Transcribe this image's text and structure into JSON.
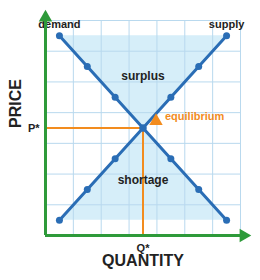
{
  "chart_data": {
    "type": "line",
    "x_label": "QUANTITY",
    "y_label": "PRICE",
    "x": [
      0.5,
      1.5,
      2.5,
      3.5,
      4.5,
      5.5,
      6.5
    ],
    "series": [
      {
        "name": "demand",
        "color": "#2a6db5",
        "marker": "circle",
        "values": [
          6.5,
          5.5,
          4.5,
          3.5,
          2.5,
          1.5,
          0.5
        ]
      },
      {
        "name": "supply",
        "color": "#2a6db5",
        "marker": "circle",
        "values": [
          0.5,
          1.5,
          2.5,
          3.5,
          4.5,
          5.5,
          6.5
        ]
      }
    ],
    "xlim": [
      0,
      7
    ],
    "ylim": [
      0,
      7
    ],
    "xticks": [
      0,
      1,
      2,
      3,
      4,
      5,
      6,
      7
    ],
    "yticks": [
      0,
      1,
      2,
      3,
      4,
      5,
      6,
      7
    ],
    "grid": true,
    "tick_labels": false,
    "equilibrium": {
      "text": "equilibrium",
      "x": 3.5,
      "y": 3.5,
      "x_label": "Q*",
      "y_label": "P*",
      "color": "#f28c1e"
    },
    "annotations": [
      {
        "text": "surplus",
        "x": 3.5,
        "y": 5.2
      },
      {
        "text": "shortage",
        "x": 3.5,
        "y": 1.8
      }
    ]
  }
}
